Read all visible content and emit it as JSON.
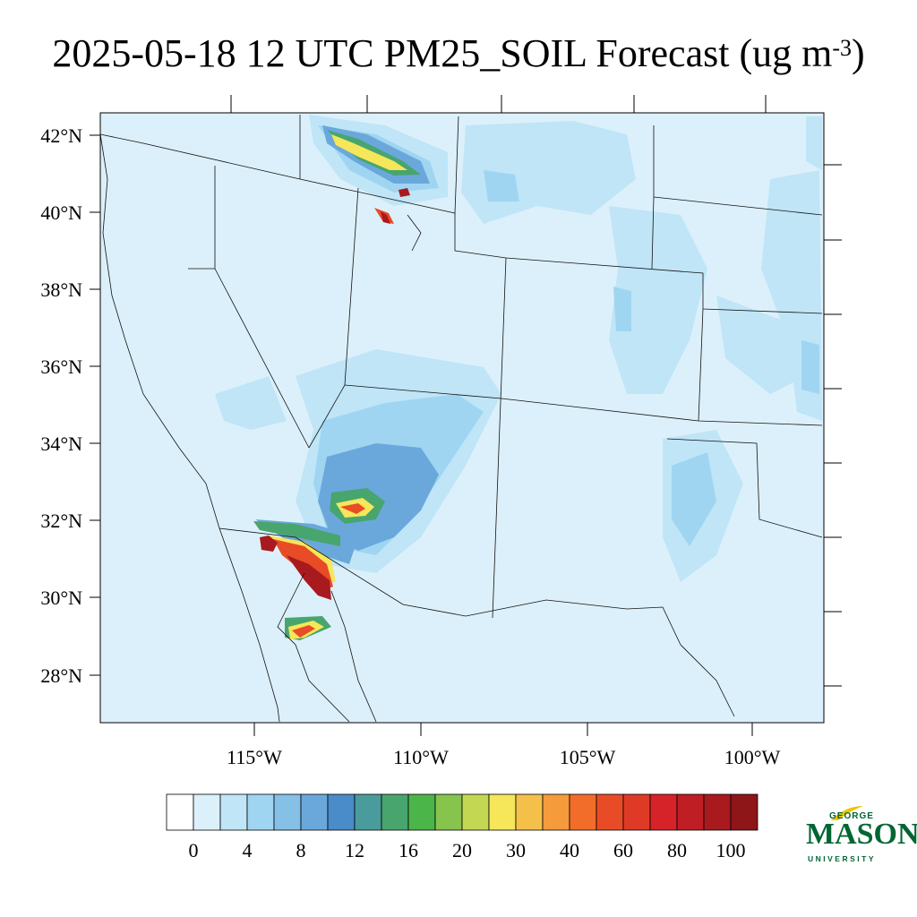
{
  "title": {
    "main": "2025-05-18 12 UTC PM25_SOIL Forecast (ug m",
    "sup": "-3",
    "close": ")"
  },
  "map": {
    "lat_labels": [
      "42°N",
      "40°N",
      "38°N",
      "36°N",
      "34°N",
      "32°N",
      "30°N",
      "28°N"
    ],
    "lon_labels": [
      "115°W",
      "110°W",
      "105°W",
      "100°W"
    ],
    "background_color": "#dcf0fb"
  },
  "colorbar": {
    "colors": [
      "#ffffff",
      "#dcf0fb",
      "#bfe5f7",
      "#a0d5f2",
      "#85c0e6",
      "#6aa8dc",
      "#4a8bc9",
      "#4a9c9c",
      "#48a56e",
      "#4bb54a",
      "#86c44d",
      "#c4d753",
      "#f5e65a",
      "#f5c04a",
      "#f59b3b",
      "#f26d2a",
      "#e84c26",
      "#df3a26",
      "#d6232a",
      "#bf1e24",
      "#a81a1e",
      "#8e1518"
    ],
    "tick_labels": [
      "0",
      "4",
      "8",
      "12",
      "16",
      "20",
      "30",
      "40",
      "60",
      "80",
      "100"
    ]
  },
  "logo": {
    "line1": "GEORGE",
    "line2": "MASON",
    "line3": "UNIVERSITY",
    "color": "#006633",
    "accent": "#f2c300"
  }
}
